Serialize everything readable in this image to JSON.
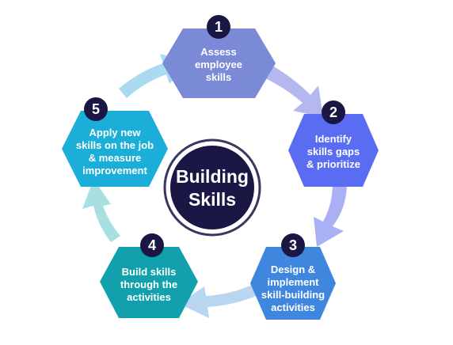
{
  "center": {
    "lines": [
      "Building",
      "Skills"
    ]
  },
  "steps": [
    {
      "number": "1",
      "lines": [
        "Assess",
        "employee",
        "skills"
      ],
      "color": "#7b8ad6"
    },
    {
      "number": "2",
      "lines": [
        "Identify",
        "skills gaps",
        "& prioritize"
      ],
      "color": "#5a6cf2"
    },
    {
      "number": "3",
      "lines": [
        "Design &",
        "implement",
        "skill-building",
        "activities"
      ],
      "color": "#3f86de"
    },
    {
      "number": "4",
      "lines": [
        "Build skills",
        "through the",
        "activities"
      ],
      "color": "#12a0ad"
    },
    {
      "number": "5",
      "lines": [
        "Apply new",
        "skills on the job",
        "& measure",
        "improvement"
      ],
      "color": "#1aaed8"
    }
  ],
  "colors": {
    "badge": "#1b1745",
    "center_fill": "#1b1745",
    "center_ring": "#3a3660",
    "arrow_1_2": "#b4b8ee",
    "arrow_2_3": "#aab0f4",
    "arrow_3_4": "#b9d6f0",
    "arrow_4_5": "#a8e0e2",
    "arrow_5_1": "#a9daf0"
  }
}
